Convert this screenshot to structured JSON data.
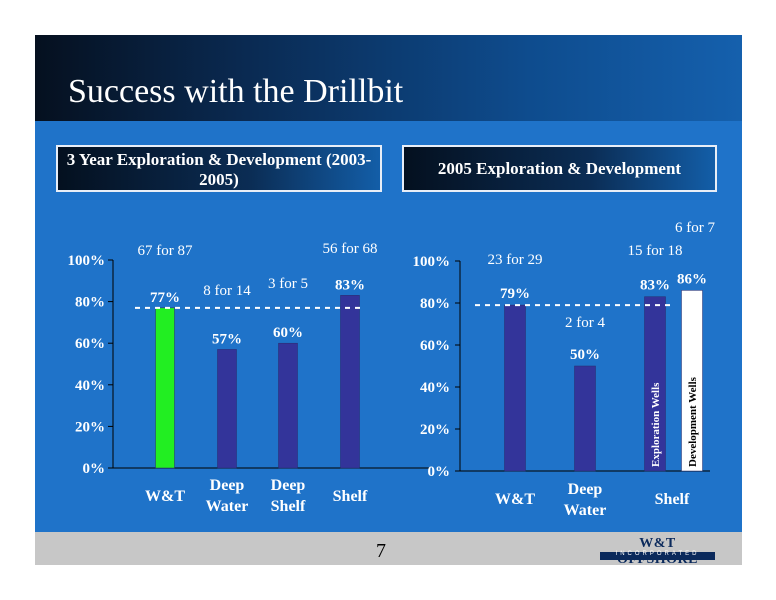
{
  "title": "Success with the Drillbit",
  "page_number": "7",
  "logo": {
    "text": "W&T OFFSHORE",
    "subtext": "INCORPORATED"
  },
  "colors": {
    "bar": "#33349a",
    "highlight": "#22ee22",
    "white_bar": "#ffffff",
    "background": "#1f73c9"
  },
  "chart_data": [
    {
      "type": "bar",
      "title": "3 Year Exploration & Development (2003-2005)",
      "categories": [
        "W&T",
        "Deep Water",
        "Deep Shelf",
        "Shelf"
      ],
      "values": [
        77,
        57,
        60,
        83
      ],
      "value_labels": [
        "77%",
        "57%",
        "60%",
        "83%"
      ],
      "count_labels": [
        "67 for 87",
        "8 for 14",
        "3 for 5",
        "56 for 68"
      ],
      "bar_colors": [
        "#22ee22",
        "#33349a",
        "#33349a",
        "#33349a"
      ],
      "reference_line": 77,
      "ylim": [
        0,
        100
      ],
      "yticks": [
        "0%",
        "20%",
        "40%",
        "60%",
        "80%",
        "100%"
      ],
      "xlabel": "",
      "ylabel": "",
      "grid": false
    },
    {
      "type": "bar",
      "title": "2005 Exploration & Development",
      "categories": [
        "W&T",
        "Deep Water",
        "Shelf"
      ],
      "series": [
        {
          "name": "Exploration Wells",
          "values": [
            79,
            50,
            83
          ]
        },
        {
          "name": "Development Wells",
          "values": [
            null,
            null,
            86
          ]
        }
      ],
      "bars": [
        {
          "category": "W&T",
          "value": 79,
          "label": "79%",
          "count": "23 for 29",
          "color": "#33349a"
        },
        {
          "category": "Deep Water",
          "value": 50,
          "label": "50%",
          "count": "2 for 4",
          "color": "#33349a"
        },
        {
          "category": "Shelf",
          "value": 83,
          "label": "83%",
          "count": "15 for 18",
          "color": "#33349a",
          "inner_label": "Exploration Wells"
        },
        {
          "category": "Shelf",
          "value": 86,
          "label": "86%",
          "count": "6 for 7",
          "color": "#ffffff",
          "inner_label": "Development Wells"
        }
      ],
      "reference_line": 79,
      "ylim": [
        0,
        100
      ],
      "yticks": [
        "0%",
        "20%",
        "40%",
        "60%",
        "80%",
        "100%"
      ],
      "xlabel": "",
      "ylabel": "",
      "grid": false
    }
  ]
}
